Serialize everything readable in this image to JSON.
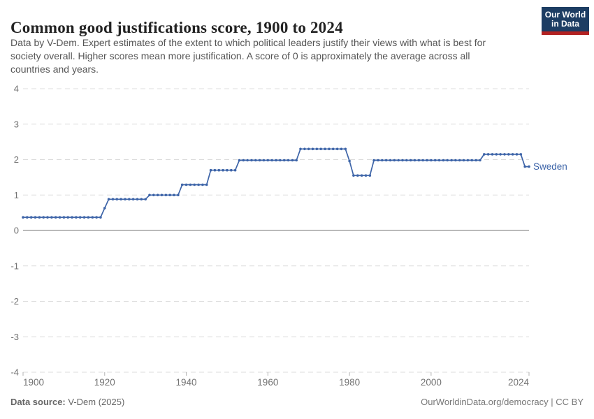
{
  "header": {
    "title": "Common good justifications score, 1900 to 2024",
    "subtitle_lines": [
      "Data by V-Dem. Expert estimates of the extent to which political leaders justify their views with what is best for",
      "society overall. Higher scores mean more justification. A score of 0 is approximately the average across all",
      "countries and years."
    ],
    "logo": {
      "line1": "Our World",
      "line2": "in Data"
    }
  },
  "footer": {
    "source_label": "Data source:",
    "source_value": " V-Dem (2025)",
    "credit": "OurWorldinData.org/democracy | CC BY"
  },
  "colors": {
    "series_blue": "#3d64a8",
    "grid": "#dcdcdc",
    "zero_line": "#a3a3a3",
    "tick_mark": "#b3b3b3",
    "axis_text": "#737373",
    "logo_navy": "#1d3d63",
    "logo_red": "#b22222"
  },
  "chart_data": {
    "type": "line",
    "title": "Common good justifications score, 1900 to 2024",
    "xlabel": "",
    "ylabel": "",
    "xlim": [
      1900,
      2024
    ],
    "ylim": [
      -4,
      4
    ],
    "x_ticks": [
      1900,
      1920,
      1940,
      1960,
      1980,
      2000,
      2024
    ],
    "y_ticks": [
      -4,
      -3,
      -2,
      -1,
      0,
      1,
      2,
      3,
      4
    ],
    "grid": "horizontal dashed gridlines, solid line at 0",
    "legend_position": "end-of-line label, right",
    "end_label": "Sweden",
    "series": [
      {
        "name": "Sweden",
        "color": "#3d64a8",
        "markers": true,
        "steps": [
          {
            "from": 1900,
            "to": 1919,
            "value": 0.37
          },
          {
            "from": 1920,
            "to": 1920,
            "value": 0.63
          },
          {
            "from": 1921,
            "to": 1930,
            "value": 0.88
          },
          {
            "from": 1931,
            "to": 1938,
            "value": 1.0
          },
          {
            "from": 1939,
            "to": 1945,
            "value": 1.29
          },
          {
            "from": 1946,
            "to": 1952,
            "value": 1.7
          },
          {
            "from": 1953,
            "to": 1967,
            "value": 1.98
          },
          {
            "from": 1968,
            "to": 1979,
            "value": 2.3
          },
          {
            "from": 1980,
            "to": 1980,
            "value": 1.96
          },
          {
            "from": 1981,
            "to": 1985,
            "value": 1.55
          },
          {
            "from": 1986,
            "to": 2012,
            "value": 1.98
          },
          {
            "from": 2013,
            "to": 2022,
            "value": 2.15
          },
          {
            "from": 2023,
            "to": 2024,
            "value": 1.8
          }
        ]
      }
    ]
  }
}
